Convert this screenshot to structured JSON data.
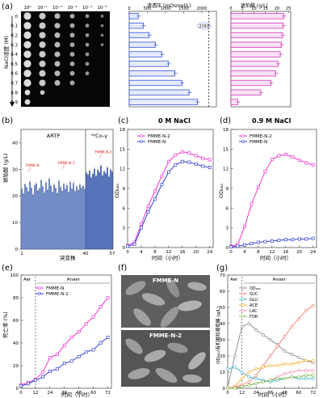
{
  "chart_data": [
    {
      "id": "a",
      "panel_label": "(a)",
      "type": "spot-assay + bar",
      "spot_assay": {
        "dilutions": [
          "10⁰",
          "10⁻¹",
          "10⁻²",
          "10⁻³",
          "10⁻⁴",
          "10⁻⁵"
        ],
        "ylabel": "NaCl浓度 (M)",
        "nacl": [
          "0",
          "0.1",
          "0.2",
          "0.3",
          "0.4",
          "0.5",
          "0.6",
          "0.7",
          "0.8",
          "0.9"
        ],
        "growth_spots": [
          6,
          6,
          6,
          6,
          5,
          5,
          5,
          4,
          2,
          1
        ]
      },
      "osmotic_bar": {
        "type": "bar",
        "title": "渗透压 (mOsmol/L)",
        "ticks": [
          "0",
          "500",
          "1000",
          "1500",
          "2000"
        ],
        "xlim": [
          0,
          2400
        ],
        "categories": [
          "0",
          "0.1",
          "0.2",
          "0.3",
          "0.4",
          "0.5",
          "0.6",
          "0.7",
          "0.8",
          "0.9"
        ],
        "values": [
          250,
          390,
          550,
          720,
          900,
          1080,
          1260,
          1450,
          1650,
          1880
        ],
        "annotation": "2193",
        "reference_line": 2193
      },
      "succinate_bar": {
        "type": "bar",
        "title": "琥珀酸 (g/L)",
        "ticks": [
          "0",
          "5",
          "10",
          "15",
          "20",
          "25"
        ],
        "xlim": [
          0,
          26
        ],
        "categories": [
          "0",
          "0.1",
          "0.2",
          "0.3",
          "0.4",
          "0.5",
          "0.6",
          "0.7",
          "0.8",
          "0.9"
        ],
        "values": [
          23,
          22.8,
          22.5,
          22,
          21.5,
          20.5,
          19.5,
          17.5,
          13,
          3
        ]
      }
    },
    {
      "id": "b",
      "panel_label": "(b)",
      "type": "bar",
      "ylabel": "琥珀酸 (g/L)",
      "xlabel": "突变株",
      "xticks": [
        "1",
        "40",
        "57"
      ],
      "yticks": [
        "0",
        "10",
        "20",
        "30",
        "40"
      ],
      "ylim": [
        0,
        45
      ],
      "group_labels": [
        "ARTP",
        "⁶⁰Co-γ"
      ],
      "annotations": [
        "FMME-N",
        "FMME-N-1",
        "FMME-N-2"
      ],
      "values": [
        22.5,
        20.8,
        24.3,
        23.1,
        21.6,
        25.2,
        22.9,
        20.4,
        23.8,
        24.6,
        21.9,
        22.7,
        25.8,
        23.4,
        21.1,
        24.9,
        22.2,
        26.3,
        23.7,
        21.4,
        24.1,
        22.8,
        20.9,
        25.5,
        23.2,
        21.8,
        24.4,
        22.5,
        23.9,
        21.3,
        25.1,
        22.6,
        24.7,
        21.7,
        23.5,
        22.1,
        24.2,
        22.9,
        23.6,
        22.4,
        28.6,
        27.9,
        29.4,
        26.8,
        28.2,
        30.1,
        27.4,
        29.7,
        28.8,
        31.3,
        27.6,
        29.2,
        28.4,
        30.6,
        27.1,
        29.8,
        28.9
      ]
    },
    {
      "id": "c",
      "panel_label": "(c)",
      "type": "line",
      "title": "0 M NaCl",
      "xlabel": "时间（小时）",
      "ylabel": "OD₆₀₀",
      "xticks": [
        "0",
        "4",
        "8",
        "12",
        "16",
        "20",
        "24"
      ],
      "yticks": [
        "0",
        "3",
        "6",
        "9",
        "12",
        "15",
        "18"
      ],
      "xlim": [
        0,
        25
      ],
      "ylim": [
        0,
        18
      ],
      "x": [
        0,
        2,
        4,
        6,
        8,
        10,
        12,
        14,
        16,
        18,
        20,
        22,
        24
      ],
      "series": [
        {
          "name": "FMME-N-2",
          "color": "#ee22cc",
          "values": [
            0.3,
            0.8,
            3.6,
            6.3,
            8.6,
            10.9,
            13.1,
            14.1,
            14.6,
            14.4,
            14.0,
            13.6,
            13.4
          ]
        },
        {
          "name": "FMME-N",
          "color": "#1f2fd0",
          "values": [
            0.2,
            0.5,
            3.0,
            5.4,
            7.4,
            9.6,
            11.5,
            12.6,
            13.1,
            13.0,
            12.7,
            12.4,
            12.2
          ]
        }
      ]
    },
    {
      "id": "d",
      "panel_label": "(d)",
      "type": "line",
      "title": "0.9 M NaCl",
      "xlabel": "时间（小时）",
      "ylabel": "OD₆₀₀",
      "xticks": [
        "0",
        "4",
        "8",
        "12",
        "16",
        "20",
        "24"
      ],
      "yticks": [
        "0",
        "3",
        "6",
        "9",
        "12",
        "15",
        "18"
      ],
      "xlim": [
        0,
        25
      ],
      "ylim": [
        0,
        18
      ],
      "x": [
        0,
        2,
        4,
        6,
        8,
        10,
        12,
        14,
        16,
        18,
        20,
        22,
        24
      ],
      "series": [
        {
          "name": "FMME-N-2",
          "color": "#ee22cc",
          "values": [
            0.2,
            0.5,
            3.2,
            6.6,
            9.2,
            11.6,
            13.4,
            14.0,
            14.2,
            13.8,
            13.3,
            12.9,
            12.6
          ]
        },
        {
          "name": "FMME-N",
          "color": "#1f2fd0",
          "values": [
            0.1,
            0.2,
            0.4,
            0.6,
            0.8,
            0.9,
            1.0,
            1.1,
            1.2,
            1.2,
            1.3,
            1.3,
            1.4
          ]
        }
      ]
    },
    {
      "id": "e",
      "panel_label": "(e)",
      "type": "line",
      "xlabel": "时间（小时）",
      "ylabel": "死亡率 (%)",
      "xticks": [
        "0",
        "12",
        "24",
        "36",
        "48",
        "60",
        "72"
      ],
      "yticks": [
        "0",
        "20",
        "40",
        "60",
        "80",
        "100"
      ],
      "xlim": [
        0,
        75
      ],
      "ylim": [
        0,
        100
      ],
      "phase_labels": [
        "Aer",
        "Anaer"
      ],
      "x": [
        0,
        6,
        12,
        18,
        24,
        30,
        36,
        42,
        48,
        54,
        60,
        66,
        72
      ],
      "series": [
        {
          "name": "FMME-N",
          "color": "#ee22cc",
          "values": [
            3,
            5,
            8,
            14,
            27,
            30,
            38,
            45,
            50,
            57,
            63,
            72,
            80
          ]
        },
        {
          "name": "FMME-N-2",
          "color": "#1f2fd0",
          "values": [
            2,
            4,
            7,
            10,
            15,
            17,
            22,
            24,
            28,
            32,
            34,
            40,
            45
          ]
        }
      ]
    },
    {
      "id": "f",
      "panel_label": "(f)",
      "type": "image",
      "labels": [
        "FMME-N",
        "FMME-N-2"
      ]
    },
    {
      "id": "g",
      "panel_label": "(g)",
      "type": "line",
      "xlabel": "时间（小时）",
      "ylabel": "OD₆₀₀/有机酸和葡萄糖 (g/L)",
      "xticks": [
        "0",
        "12",
        "24",
        "36",
        "48",
        "60",
        "72"
      ],
      "yticks": [
        "0",
        "10",
        "20",
        "30",
        "40",
        "50",
        "60",
        "70"
      ],
      "xlim": [
        0,
        75
      ],
      "ylim": [
        0,
        70
      ],
      "phase_labels": [
        "Aer",
        "Anaer"
      ],
      "x": [
        0,
        6,
        12,
        18,
        24,
        30,
        36,
        42,
        48,
        54,
        60,
        66,
        72
      ],
      "series": [
        {
          "name": "OD₆₀₀",
          "color": "#888888",
          "values": [
            1,
            20,
            38,
            40,
            36,
            33,
            30,
            27,
            23,
            21,
            19,
            17,
            16
          ]
        },
        {
          "name": "SUC",
          "color": "#f07a6a",
          "values": [
            0,
            1,
            2,
            4,
            8,
            14,
            20,
            26,
            32,
            38,
            43,
            48,
            51
          ]
        },
        {
          "name": "GLU",
          "color": "#3fb6c9",
          "values": [
            12,
            13,
            10,
            7,
            6,
            5,
            4,
            5,
            6,
            7,
            6,
            6,
            6
          ]
        },
        {
          "name": "ACE",
          "color": "#f0b030",
          "values": [
            0,
            1,
            6,
            10,
            12,
            13,
            14,
            14,
            15,
            15,
            16,
            17,
            17
          ]
        },
        {
          "name": "LAC",
          "color": "#ec8cb0",
          "values": [
            0,
            0.5,
            1,
            2,
            3,
            4,
            5,
            7,
            9,
            10,
            11,
            11,
            11
          ]
        },
        {
          "name": "FOR",
          "color": "#7ab84b",
          "values": [
            0,
            0,
            1,
            2,
            3,
            4,
            5,
            6,
            6,
            7,
            7,
            8,
            8
          ]
        }
      ]
    }
  ]
}
